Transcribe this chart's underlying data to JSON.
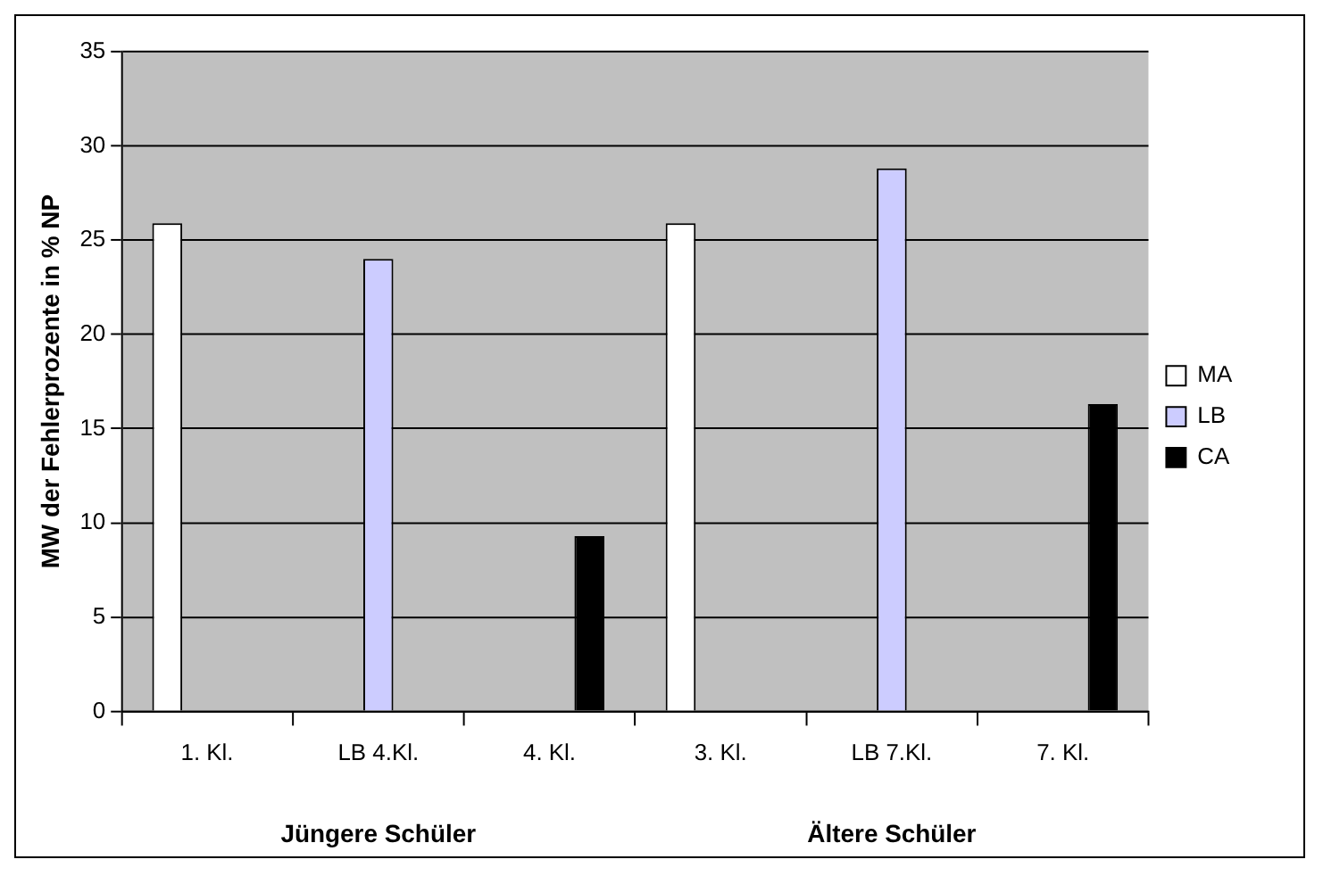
{
  "chart_data": {
    "type": "bar",
    "ylabel": "MW der Fehlerprozente in % NP",
    "categories": [
      "1. Kl.",
      "LB 4.Kl.",
      "4. Kl.",
      "3. Kl.",
      "LB 7.Kl.",
      "7. Kl."
    ],
    "series": [
      {
        "name": "MA",
        "color": "#ffffff",
        "values": [
          25.9,
          null,
          null,
          25.9,
          null,
          null
        ]
      },
      {
        "name": "LB",
        "color": "#ccccff",
        "values": [
          null,
          24.0,
          null,
          null,
          28.8,
          null
        ]
      },
      {
        "name": "CA",
        "color": "#000000",
        "values": [
          null,
          null,
          9.3,
          null,
          null,
          16.3
        ]
      }
    ],
    "ylim": [
      0,
      35
    ],
    "yticks": [
      0,
      5,
      10,
      15,
      20,
      25,
      30,
      35
    ],
    "grid": "y",
    "legend": "right",
    "annotations": [
      "Jüngere Schüler",
      "Ältere Schüler"
    ]
  }
}
